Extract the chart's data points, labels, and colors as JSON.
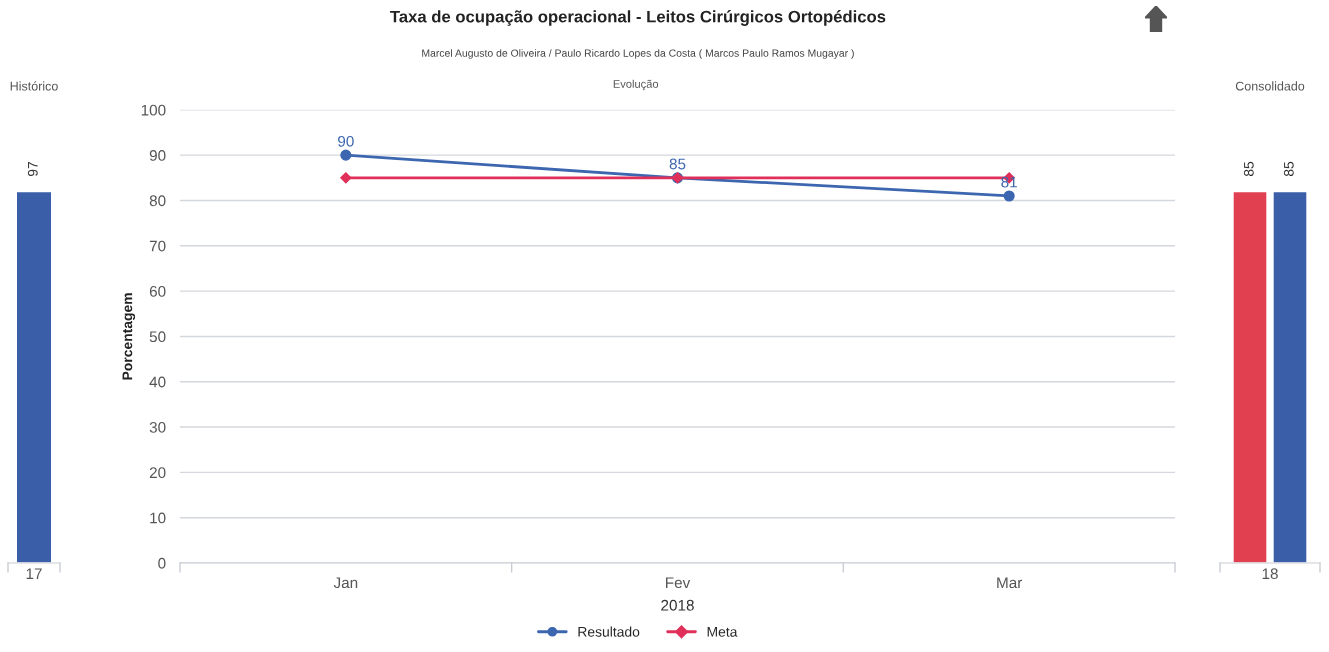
{
  "chart_data": [
    {
      "type": "bar",
      "title": "Histórico",
      "categories": [
        "17"
      ],
      "values": [
        97
      ],
      "color": "#3a5ea8",
      "data_labels": true
    },
    {
      "type": "line",
      "title": "Taxa de ocupação operacional - Leitos Cirúrgicos Ortopédicos",
      "subtitle": "Marcel Augusto de Oliveira / Paulo Ricardo Lopes da Costa ( Marcos Paulo Ramos Mugayar )",
      "annotations": [
        "Evolução"
      ],
      "categories": [
        "Jan",
        "Fev",
        "Mar"
      ],
      "xlabel": "2018",
      "ylabel": "Porcentagem",
      "ylim": [
        0,
        100
      ],
      "yticks": [
        0,
        10,
        20,
        30,
        40,
        50,
        60,
        70,
        80,
        90,
        100
      ],
      "grid": "y",
      "legend": "bottom",
      "series": [
        {
          "name": "Resultado",
          "color": "#3d66b0",
          "values": [
            90,
            85,
            81
          ],
          "marker": "circle",
          "value_labels": [
            "90",
            "85",
            "81"
          ]
        },
        {
          "name": "Meta",
          "color": "#e0305a",
          "values": [
            85,
            85,
            85
          ],
          "marker": "diamond"
        }
      ]
    },
    {
      "type": "bar",
      "title": "Consolidado",
      "categories": [
        "18"
      ],
      "data_labels": true,
      "series": [
        {
          "color": "#e0404f",
          "values": [
            85
          ]
        },
        {
          "color": "#3a5ea8",
          "values": [
            85
          ]
        }
      ]
    }
  ]
}
